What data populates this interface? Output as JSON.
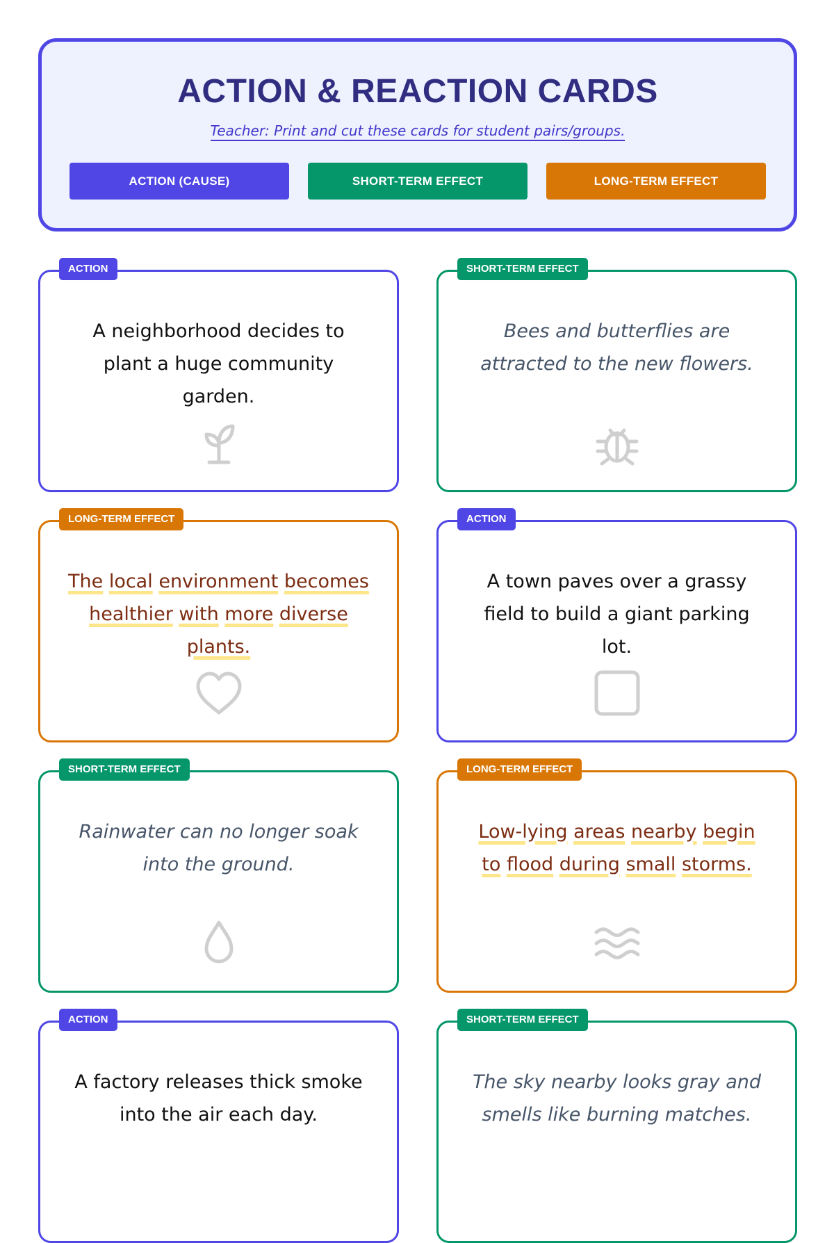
{
  "header": {
    "title": "ACTION & REACTION CARDS",
    "subtitle": "Teacher: Print and cut these cards for student pairs/groups.",
    "legend": [
      {
        "label": "ACTION (CAUSE)",
        "color": "#4f46e5"
      },
      {
        "label": "SHORT-TERM EFFECT",
        "color": "#059669"
      },
      {
        "label": "LONG-TERM EFFECT",
        "color": "#d97706"
      }
    ]
  },
  "cards": [
    {
      "type": "action",
      "tag": "ACTION",
      "text": "A neighborhood decides to plant a huge community garden.",
      "icon": "sprout-icon"
    },
    {
      "type": "short",
      "tag": "SHORT-TERM EFFECT",
      "text": "Bees and butterflies are attracted to the new flowers.",
      "icon": "bug-icon"
    },
    {
      "type": "long",
      "tag": "LONG-TERM EFFECT",
      "text": "The local environment becomes healthier with more diverse plants.",
      "icon": "heart-icon"
    },
    {
      "type": "action",
      "tag": "ACTION",
      "text": "A town paves over a grassy field to build a giant parking lot.",
      "icon": "square-icon"
    },
    {
      "type": "short",
      "tag": "SHORT-TERM EFFECT",
      "text": "Rainwater can no longer soak into the ground.",
      "icon": "droplet-icon"
    },
    {
      "type": "long",
      "tag": "LONG-TERM EFFECT",
      "text": "Low-lying areas nearby begin to flood during small storms.",
      "icon": "waves-icon"
    },
    {
      "type": "action",
      "tag": "ACTION",
      "text": "A factory releases thick smoke into the air each day.",
      "icon": ""
    },
    {
      "type": "short",
      "tag": "SHORT-TERM EFFECT",
      "text": "The sky nearby looks gray and smells like burning matches.",
      "icon": ""
    }
  ]
}
